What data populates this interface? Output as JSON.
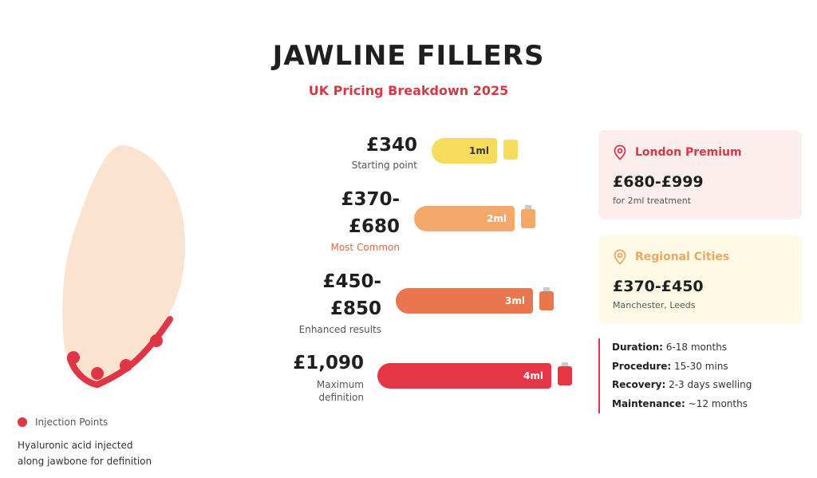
{
  "title": "JAWLINE FILLERS",
  "subtitle": "UK Pricing Breakdown 2025",
  "colors": {
    "accent": "#d83846",
    "face": "#fae3cf",
    "dots": "#e03545"
  },
  "legend": {
    "label": "Injection Points",
    "icon": "red-dot-icon"
  },
  "note": {
    "line1": "Hyaluronic acid injected",
    "line2": "along jawbone for definition"
  },
  "tiers": [
    {
      "price_line1": "£340",
      "price_line2": "",
      "label": "Starting point",
      "volume": "1ml",
      "color": "#f6dc5a",
      "text_color": "#3a3a3a",
      "label_color": "#555555"
    },
    {
      "price_line1": "£370-",
      "price_line2": "£680",
      "label": "Most Common",
      "volume": "2ml",
      "color": "#f4a86a",
      "text_color": "#ffffff",
      "label_color": "#e06a4a"
    },
    {
      "price_line1": "£450-",
      "price_line2": "£850",
      "label": "Enhanced results",
      "volume": "3ml",
      "color": "#e9764f",
      "text_color": "#ffffff",
      "label_color": "#555555"
    },
    {
      "price_line1": "£1,090",
      "price_line2": "",
      "label_line1": "Maximum",
      "label_line2": "definition",
      "volume": "4ml",
      "color": "#e63544",
      "text_color": "#ffffff",
      "label_color": "#555555"
    }
  ],
  "cards": [
    {
      "title": "London Premium",
      "price": "£680-£999",
      "sub": "for 2ml treatment",
      "bg": "#fdeeee",
      "title_color": "#d83846",
      "icon": "location-pin-icon"
    },
    {
      "title": "Regional Cities",
      "price": "£370-£450",
      "sub": "Manchester, Leeds",
      "bg": "#fefae6",
      "title_color": "#f0a65e",
      "icon": "location-pin-icon"
    }
  ],
  "details": [
    {
      "key": "Duration:",
      "value": "6-18 months"
    },
    {
      "key": "Procedure:",
      "value": "15-30 mins"
    },
    {
      "key": "Recovery:",
      "value": "2-3 days swelling"
    },
    {
      "key": "Maintenance:",
      "value": "~12 months"
    }
  ]
}
